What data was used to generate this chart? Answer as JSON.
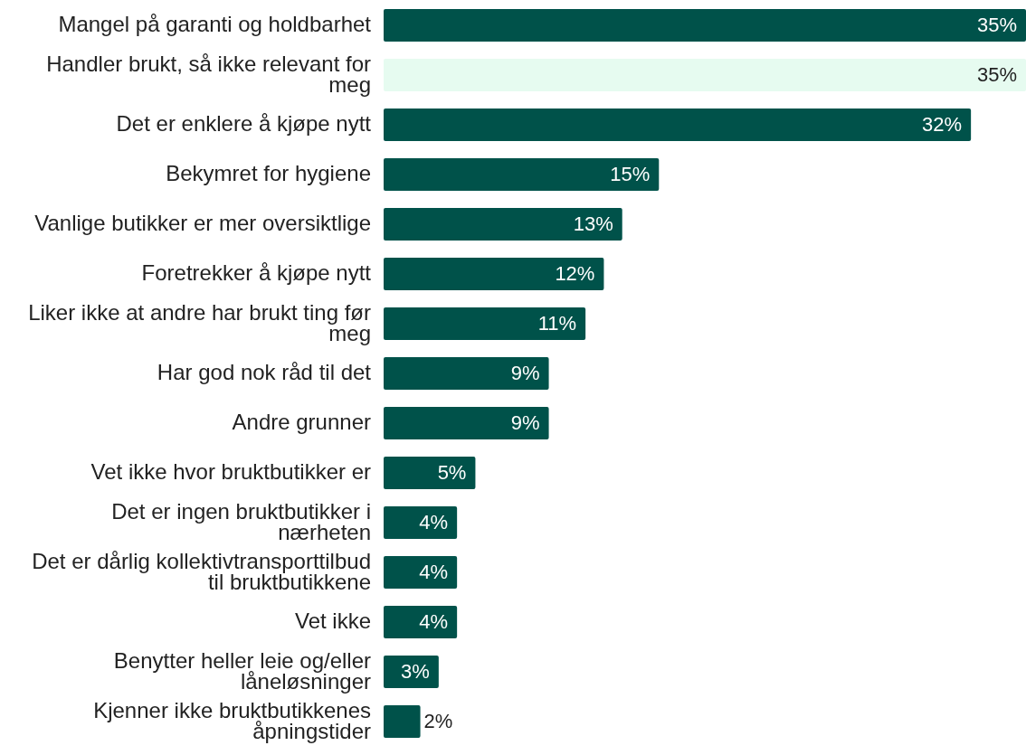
{
  "chart_data": {
    "type": "bar",
    "orientation": "horizontal",
    "value_labels": [
      "35%",
      "35%",
      "32%",
      "15%",
      "13%",
      "12%",
      "11%",
      "9%",
      "9%",
      "5%",
      "4%",
      "4%",
      "4%",
      "3%",
      "2%"
    ],
    "categories": [
      "Mangel på garanti og holdbarhet",
      "Handler brukt, så ikke relevant for meg",
      "Det er enklere å kjøpe nytt",
      "Bekymret for hygiene",
      "Vanlige butikker er mer oversiktlige",
      "Foretrekker å kjøpe nytt",
      "Liker ikke at andre har brukt ting før meg",
      "Har god nok råd til det",
      "Andre grunner",
      "Vet ikke hvor bruktbutikker er",
      "Det er ingen bruktbutikker i nærheten",
      "Det er dårlig kollektivtransporttilbud til bruktbutikkene",
      "Vet ikke",
      "Benytter heller leie og/eller låneløsninger",
      "Kjenner ikke bruktbutikkenes åpningstider"
    ],
    "values": [
      35,
      35,
      32,
      15,
      13,
      12,
      11,
      9,
      9,
      5,
      4,
      4,
      4,
      3,
      2
    ],
    "colors": [
      "#00524a",
      "#e6fbf0",
      "#00524a",
      "#00524a",
      "#00524a",
      "#00524a",
      "#00524a",
      "#00524a",
      "#00524a",
      "#00524a",
      "#00524a",
      "#00524a",
      "#00524a",
      "#00524a",
      "#00524a"
    ]
  }
}
